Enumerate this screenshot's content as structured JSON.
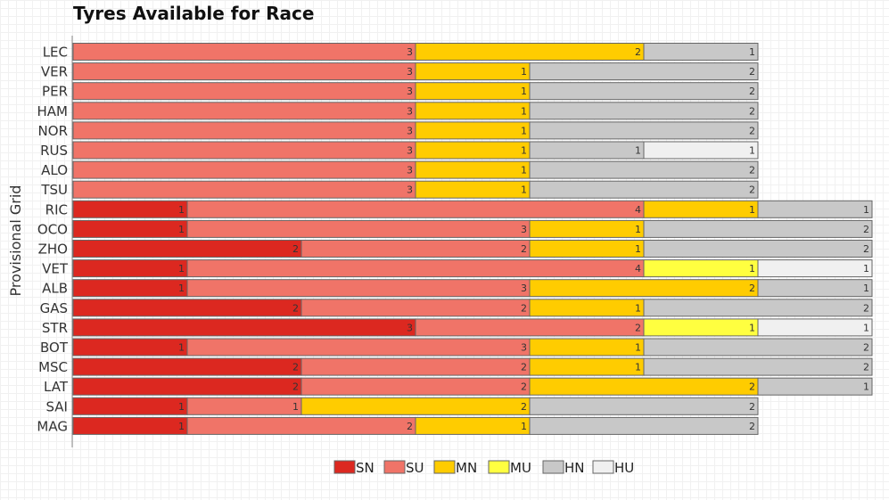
{
  "chart_data": {
    "type": "bar",
    "orientation": "horizontal",
    "stacked": true,
    "title": "Tyres Available for Race",
    "ylabel": "Provisional Grid",
    "xlabel": "",
    "categories": [
      "LEC",
      "VER",
      "PER",
      "HAM",
      "NOR",
      "RUS",
      "ALO",
      "TSU",
      "RIC",
      "OCO",
      "ZHO",
      "VET",
      "ALB",
      "GAS",
      "STR",
      "BOT",
      "MSC",
      "LAT",
      "SAI",
      "MAG"
    ],
    "series": [
      {
        "name": "SN",
        "color": "#dc2820",
        "values": [
          0,
          0,
          0,
          0,
          0,
          0,
          0,
          0,
          1,
          1,
          2,
          1,
          1,
          2,
          3,
          1,
          2,
          2,
          1,
          1
        ]
      },
      {
        "name": "SU",
        "color": "#f07468",
        "values": [
          3,
          3,
          3,
          3,
          3,
          3,
          3,
          3,
          4,
          3,
          2,
          4,
          3,
          2,
          2,
          3,
          2,
          2,
          1,
          2
        ]
      },
      {
        "name": "MN",
        "color": "#ffcc00",
        "values": [
          2,
          1,
          1,
          1,
          1,
          1,
          1,
          1,
          1,
          1,
          1,
          0,
          2,
          1,
          0,
          1,
          1,
          2,
          2,
          1
        ]
      },
      {
        "name": "MU",
        "color": "#ffff40",
        "values": [
          0,
          0,
          0,
          0,
          0,
          0,
          0,
          0,
          0,
          0,
          0,
          1,
          0,
          0,
          1,
          0,
          0,
          0,
          0,
          0
        ]
      },
      {
        "name": "HN",
        "color": "#c8c8c8",
        "values": [
          1,
          2,
          2,
          2,
          2,
          1,
          2,
          2,
          1,
          2,
          2,
          0,
          1,
          2,
          0,
          2,
          2,
          1,
          2,
          2
        ]
      },
      {
        "name": "HU",
        "color": "#f0f0f0",
        "values": [
          0,
          0,
          0,
          0,
          0,
          1,
          0,
          0,
          0,
          0,
          0,
          1,
          0,
          0,
          1,
          0,
          0,
          0,
          0,
          0
        ]
      }
    ],
    "xlim": [
      0,
      7
    ],
    "grid": false,
    "legend": "bottom"
  }
}
